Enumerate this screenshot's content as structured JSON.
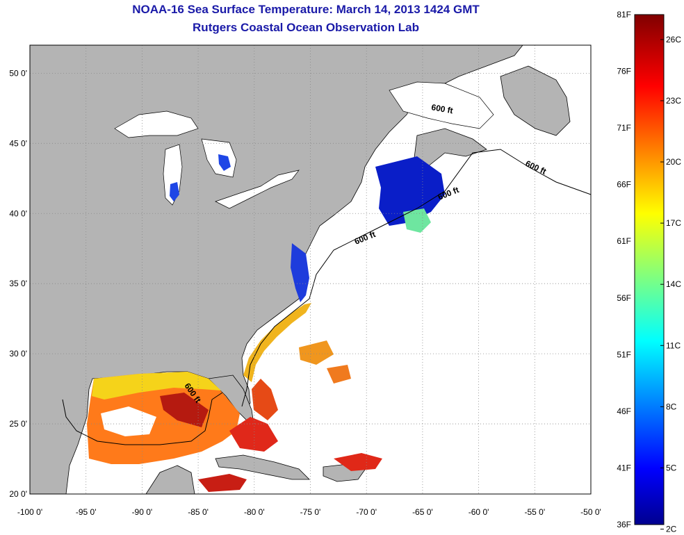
{
  "title": {
    "line1": "NOAA-16 Sea Surface Temperature:  March 14, 2013 1424 GMT",
    "line2": "Rutgers Coastal Ocean Observation Lab"
  },
  "map": {
    "lon_range": [
      -100,
      -50
    ],
    "lat_range": [
      20,
      52
    ],
    "lon_ticks": [
      "-100 0'",
      "-95 0'",
      "-90 0'",
      "-85 0'",
      "-80 0'",
      "-75 0'",
      "-70 0'",
      "-65 0'",
      "-60 0'",
      "-55 0'",
      "-50 0'"
    ],
    "lat_ticks": [
      "20 0'",
      "25 0'",
      "30 0'",
      "35 0'",
      "40 0'",
      "45 0'",
      "50 0'"
    ],
    "contour_label": "600 ft",
    "land_color": "#b4b4b4",
    "grid": true
  },
  "colorbar": {
    "fahrenheit": [
      "81F",
      "76F",
      "71F",
      "66F",
      "61F",
      "56F",
      "51F",
      "46F",
      "41F",
      "36F"
    ],
    "celsius": [
      "26C",
      "23C",
      "20C",
      "17C",
      "14C",
      "11C",
      "8C",
      "5C",
      "2C"
    ],
    "colormap": "jet"
  }
}
